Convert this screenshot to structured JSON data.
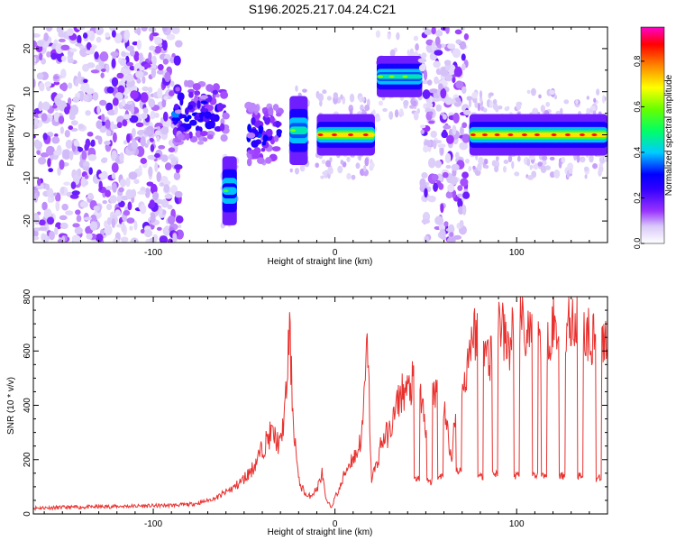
{
  "title": "S196.2025.217.04.24.C21",
  "chart_data": [
    {
      "type": "heatmap",
      "xlabel": "Height of straight line (km)",
      "ylabel": "Frequency (Hz)",
      "xlim": [
        -166,
        150
      ],
      "ylim": [
        -25,
        25
      ],
      "x_ticks": [
        -100,
        0,
        100
      ],
      "y_ticks": [
        -20,
        -10,
        0,
        10,
        20
      ],
      "colorbar": {
        "label": "Normalized spectral amplitude",
        "range": [
          0,
          0.95
        ],
        "ticks": [
          0.0,
          0.2,
          0.4,
          0.6,
          0.8
        ],
        "colormap": [
          "#ffffff",
          "#d8c8f8",
          "#9933ff",
          "#3300ff",
          "#0000ff",
          "#00ccff",
          "#00ff66",
          "#66ff00",
          "#ffff00",
          "#ff8800",
          "#ff0000",
          "#ff00cc"
        ]
      },
      "features": [
        {
          "x_range": [
            -166,
            -85
          ],
          "freq_range": [
            -25,
            25
          ],
          "amplitude": 0.15,
          "kind": "noise"
        },
        {
          "x_range": [
            -88,
            -60
          ],
          "freq_center": 5,
          "amplitude": 0.35,
          "kind": "patchy"
        },
        {
          "x_range": [
            -62,
            -54
          ],
          "freq_center": -13,
          "amplitude": 0.45,
          "kind": "segment"
        },
        {
          "x_range": [
            -48,
            -30
          ],
          "freq_center": 0,
          "amplitude": 0.3,
          "kind": "patchy"
        },
        {
          "x_range": [
            -25,
            -15
          ],
          "freq_center": 1,
          "amplitude": 0.5,
          "kind": "segment"
        },
        {
          "x_range": [
            -10,
            22
          ],
          "freq_center": 0,
          "amplitude": 0.75,
          "kind": "line"
        },
        {
          "x_range": [
            23,
            48
          ],
          "freq_center": 13.5,
          "amplitude": 0.5,
          "kind": "line"
        },
        {
          "x_range": [
            48,
            73
          ],
          "freq_range": [
            -25,
            25
          ],
          "amplitude": 0.15,
          "kind": "noise"
        },
        {
          "x_range": [
            74,
            150
          ],
          "freq_center": 0,
          "amplitude": 0.75,
          "kind": "line"
        }
      ]
    },
    {
      "type": "line",
      "xlabel": "Height of straight line (km)",
      "ylabel": "SNR (10 * v/v)",
      "xlim": [
        -166,
        150
      ],
      "ylim": [
        0,
        800
      ],
      "x_ticks": [
        -100,
        0,
        100
      ],
      "y_ticks": [
        0,
        200,
        400,
        600,
        800
      ],
      "series": [
        {
          "color": "#e8312e",
          "x": [
            -166,
            -140,
            -120,
            -100,
            -90,
            -80,
            -75,
            -70,
            -65,
            -60,
            -55,
            -50,
            -45,
            -40,
            -35,
            -30,
            -27,
            -25,
            -23,
            -20,
            -15,
            -10,
            -7,
            -5,
            -2,
            0,
            3,
            6,
            9,
            12,
            15,
            18,
            20,
            23,
            25,
            27,
            30,
            33,
            35,
            37,
            40,
            42,
            45,
            48,
            50,
            53,
            55,
            58,
            60,
            62,
            64,
            66,
            68,
            70,
            72,
            75,
            80,
            85,
            90,
            95,
            100,
            105,
            110,
            115,
            120,
            125,
            130,
            135,
            140,
            145,
            150
          ],
          "values": [
            22,
            25,
            28,
            30,
            32,
            35,
            40,
            50,
            60,
            80,
            100,
            130,
            170,
            240,
            300,
            250,
            420,
            680,
            350,
            120,
            60,
            90,
            150,
            50,
            25,
            60,
            100,
            160,
            200,
            220,
            300,
            640,
            130,
            180,
            250,
            280,
            300,
            370,
            420,
            450,
            450,
            470,
            520,
            400,
            300,
            380,
            470,
            420,
            390,
            300,
            200,
            330,
            360,
            430,
            520,
            650,
            700,
            560,
            730,
            600,
            720,
            660,
            690,
            620,
            700,
            640,
            720,
            680,
            660,
            640,
            630
          ],
          "dips_to": [
            [
              45,
              130
            ],
            [
              52,
              120
            ],
            [
              58,
              140
            ],
            [
              68,
              160
            ],
            [
              80,
              140
            ],
            [
              88,
              150
            ],
            [
              100,
              140
            ],
            [
              110,
              140
            ],
            [
              115,
              140
            ],
            [
              125,
              140
            ],
            [
              135,
              140
            ],
            [
              145,
              130
            ]
          ]
        }
      ]
    }
  ]
}
